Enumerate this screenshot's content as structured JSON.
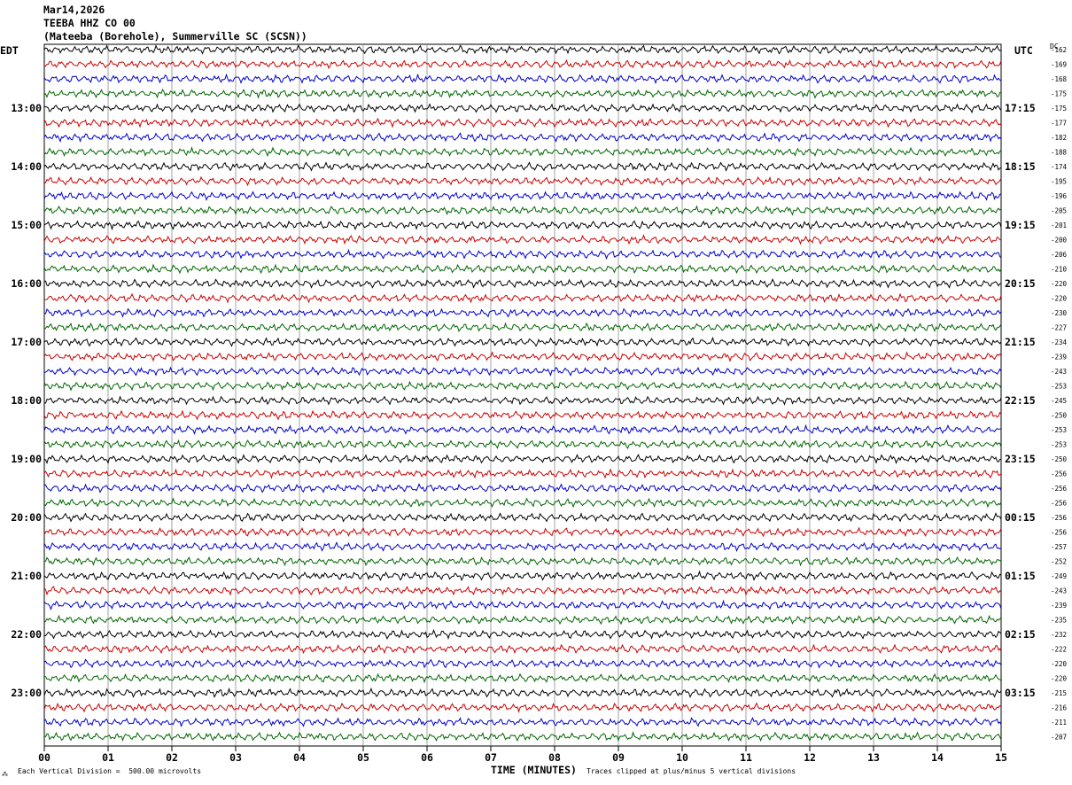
{
  "header": {
    "date": "Mar14,2026",
    "station": "TEEBA HHZ CO 00",
    "location": "(Mateeba (Borehole), Summerville SC (SCSN))"
  },
  "left_zone": "EDT",
  "right_zone": "UTC",
  "dc_label": "DC",
  "footer": {
    "scale_note": "Each Vertical Division =  500.00 microvolts",
    "clip_note": "Traces clipped at plus/minus 5 vertical divisions",
    "logo": "⁂"
  },
  "chart_data": {
    "type": "line",
    "subtype": "helicorder",
    "xlabel": "TIME (MINUTES)",
    "xlim": [
      0,
      15
    ],
    "x_ticks": [
      "00",
      "01",
      "02",
      "03",
      "04",
      "05",
      "06",
      "07",
      "08",
      "09",
      "10",
      "11",
      "12",
      "13",
      "14",
      "15"
    ],
    "trace_colors": [
      "#000000",
      "#cc0000",
      "#0000cc",
      "#006600"
    ],
    "left_hour_labels": [
      {
        "row": 4,
        "label": "13:00"
      },
      {
        "row": 8,
        "label": "14:00"
      },
      {
        "row": 12,
        "label": "15:00"
      },
      {
        "row": 16,
        "label": "16:00"
      },
      {
        "row": 20,
        "label": "17:00"
      },
      {
        "row": 24,
        "label": "18:00"
      },
      {
        "row": 28,
        "label": "19:00"
      },
      {
        "row": 32,
        "label": "20:00"
      },
      {
        "row": 36,
        "label": "21:00"
      },
      {
        "row": 40,
        "label": "22:00"
      },
      {
        "row": 44,
        "label": "23:00"
      }
    ],
    "right_hour_labels": [
      {
        "row": 4,
        "label": "17:15"
      },
      {
        "row": 8,
        "label": "18:15"
      },
      {
        "row": 12,
        "label": "19:15"
      },
      {
        "row": 16,
        "label": "20:15"
      },
      {
        "row": 20,
        "label": "21:15"
      },
      {
        "row": 24,
        "label": "22:15"
      },
      {
        "row": 28,
        "label": "23:15"
      },
      {
        "row": 32,
        "label": "00:15"
      },
      {
        "row": 36,
        "label": "01:15"
      },
      {
        "row": 40,
        "label": "02:15"
      },
      {
        "row": 44,
        "label": "03:15"
      }
    ],
    "dc_offsets": [
      -162,
      -169,
      -168,
      -175,
      -175,
      -177,
      -182,
      -188,
      -174,
      -195,
      -196,
      -205,
      -201,
      -200,
      -206,
      -210,
      -220,
      -220,
      -230,
      -227,
      -234,
      -239,
      -243,
      -253,
      -245,
      -250,
      -253,
      -253,
      -250,
      -256,
      -256,
      -256,
      -256,
      -256,
      -257,
      -252,
      -249,
      -243,
      -239,
      -235,
      -232,
      -222,
      -220,
      -220,
      -215,
      -216,
      -211,
      -207
    ]
  }
}
